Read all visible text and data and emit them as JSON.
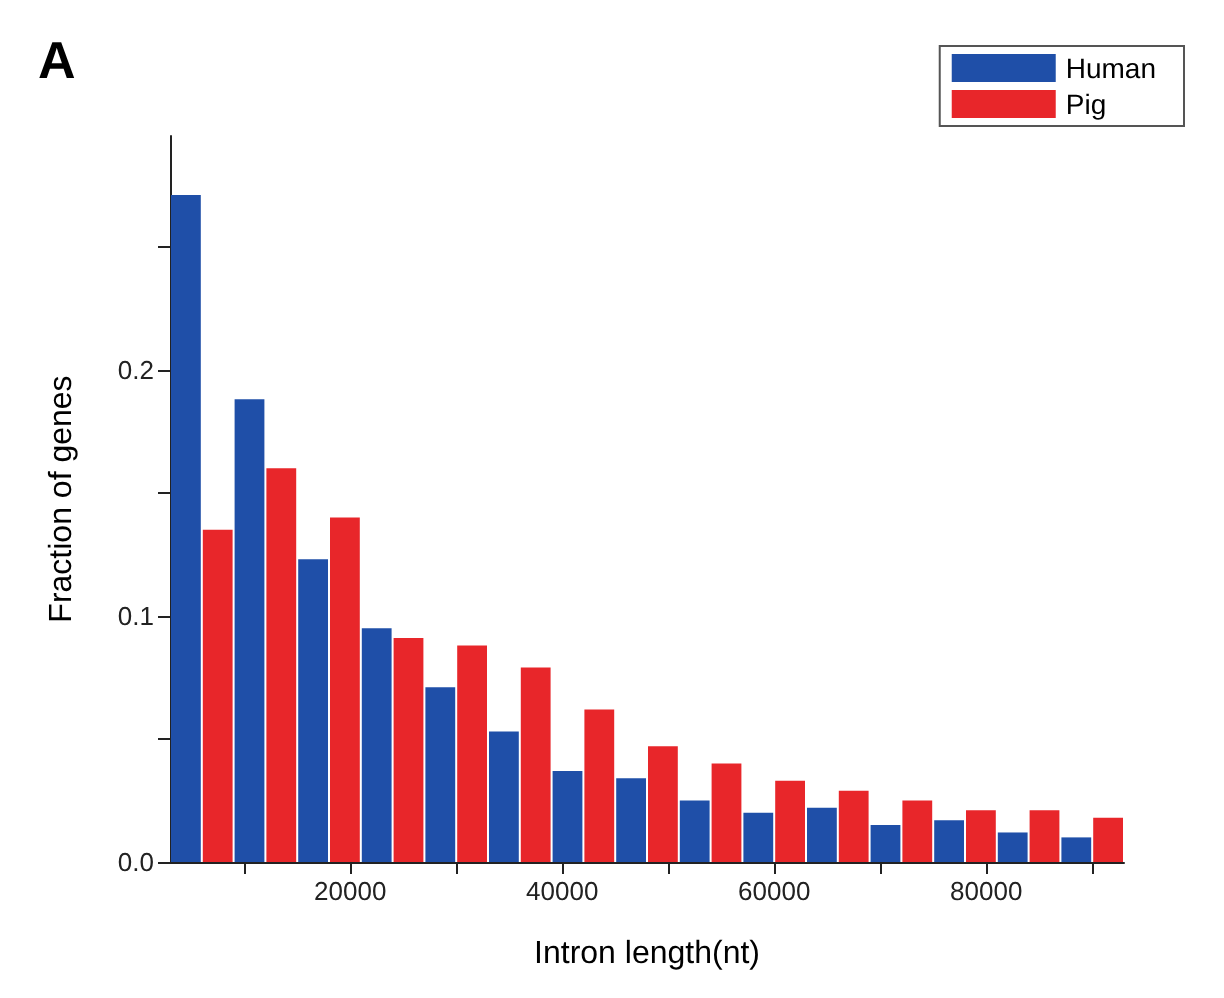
{
  "chart_data": {
    "type": "histogram",
    "title": "A",
    "xlabel": "Intron length(nt)",
    "ylabel": "Fraction of genes",
    "bins": [
      3000,
      9000,
      15000,
      21000,
      27000,
      33000,
      39000,
      45000,
      51000,
      57000,
      63000,
      69000,
      75000,
      81000,
      87000,
      93000
    ],
    "series": [
      {
        "name": "Human",
        "color": "#1f4fa8",
        "values": [
          0.271,
          0.188,
          0.123,
          0.095,
          0.071,
          0.053,
          0.037,
          0.034,
          0.025,
          0.02,
          0.022,
          0.015,
          0.017,
          0.012,
          0.01
        ]
      },
      {
        "name": "Pig",
        "color": "#e8262a",
        "values": [
          0.135,
          0.16,
          0.14,
          0.091,
          0.088,
          0.079,
          0.062,
          0.047,
          0.04,
          0.033,
          0.029,
          0.025,
          0.021,
          0.021,
          0.018
        ]
      }
    ],
    "xlim": [
      3000,
      93000
    ],
    "ylim": [
      0,
      0.295
    ],
    "xticks": [
      {
        "value": 10000,
        "label": null
      },
      {
        "value": 20000,
        "label": "20000"
      },
      {
        "value": 30000,
        "label": null
      },
      {
        "value": 40000,
        "label": "40000"
      },
      {
        "value": 50000,
        "label": null
      },
      {
        "value": 60000,
        "label": "60000"
      },
      {
        "value": 70000,
        "label": null
      },
      {
        "value": 80000,
        "label": "80000"
      },
      {
        "value": 90000,
        "label": null
      }
    ],
    "yticks": [
      {
        "value": 0,
        "label": "0.0"
      },
      {
        "value": 0.05,
        "label": null
      },
      0.1,
      {
        "value": 0.15,
        "label": null
      },
      0.2,
      {
        "value": 0.25,
        "label": null
      }
    ],
    "legend": "top right",
    "grid": false
  }
}
